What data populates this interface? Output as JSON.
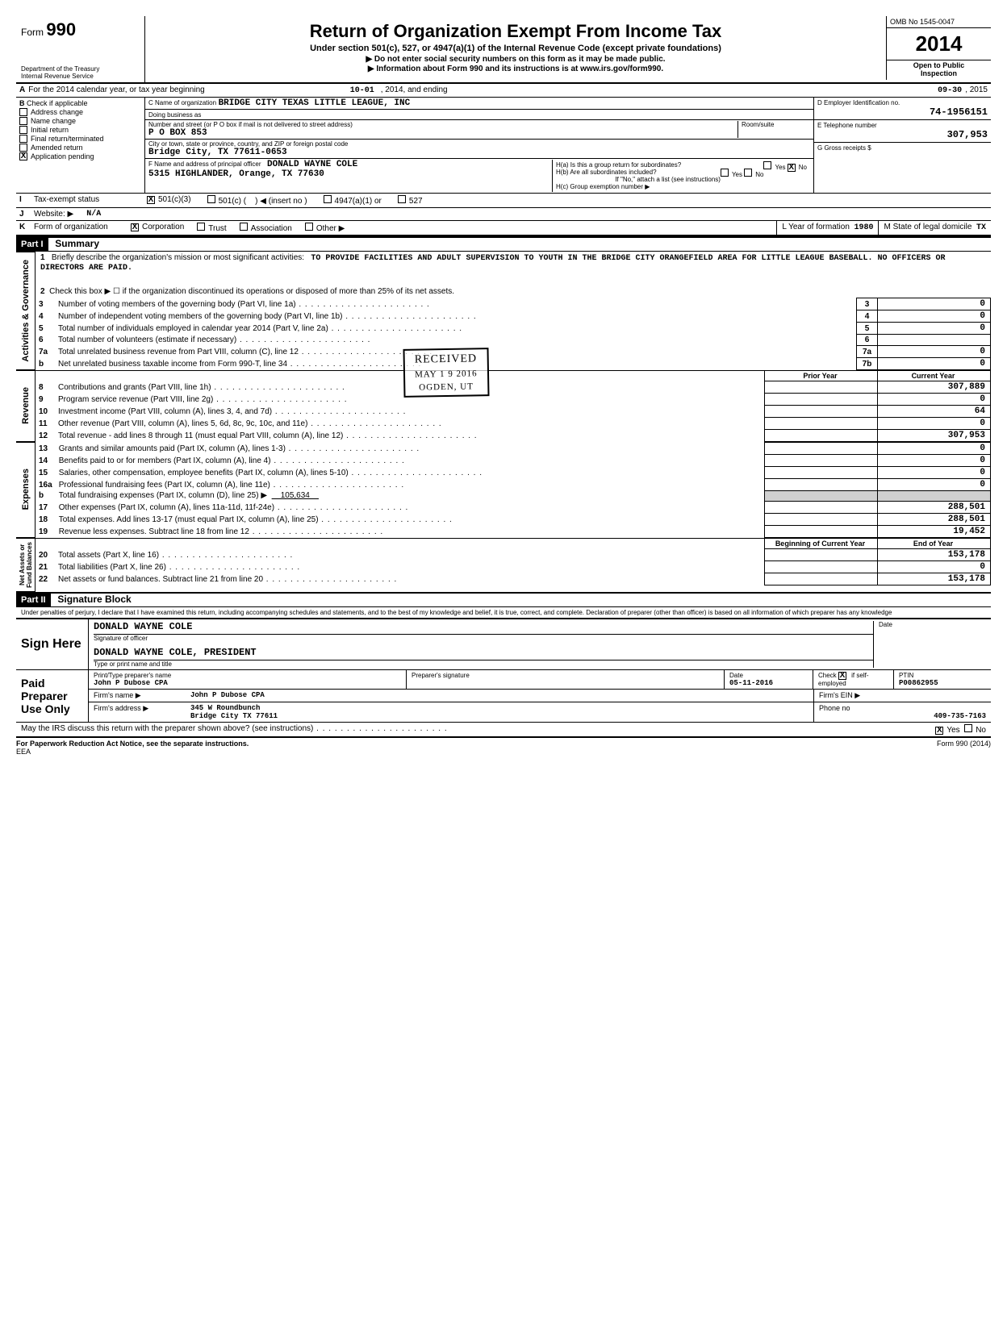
{
  "header": {
    "form_label": "Form",
    "form_number": "990",
    "dept1": "Department of the Treasury",
    "dept2": "Internal Revenue Service",
    "title": "Return of Organization Exempt From Income Tax",
    "subtitle": "Under section 501(c), 527, or 4947(a)(1) of the Internal Revenue Code (except private foundations)",
    "note1": "▶ Do not enter social security numbers on this form as it may be made public.",
    "note2": "▶ Information about Form 990 and its instructions is at www.irs.gov/form990.",
    "omb": "OMB No 1545-0047",
    "year": "2014",
    "open1": "Open to Public",
    "open2": "Inspection"
  },
  "row_a": {
    "prefix": "A",
    "text": "For the 2014 calendar year, or tax year beginning",
    "begin": "10-01",
    "mid": ", 2014, and ending",
    "end": "09-30",
    "end2": ", 2015"
  },
  "section_b": {
    "b_label": "B",
    "b_text": "Check if applicable",
    "checks": [
      {
        "label": "Address change",
        "checked": false
      },
      {
        "label": "Name change",
        "checked": false
      },
      {
        "label": "Initial return",
        "checked": false
      },
      {
        "label": "Final return/terminated",
        "checked": false
      },
      {
        "label": "Amended return",
        "checked": false
      },
      {
        "label": "Application pending",
        "checked": true
      }
    ],
    "c_label": "C  Name of organization",
    "c_value": "BRIDGE CITY TEXAS LITTLE LEAGUE, INC",
    "dba_label": "Doing business as",
    "addr_label": "Number and street (or P O box if mail is not delivered to street address)",
    "addr_value": "P O BOX 853",
    "room_label": "Room/suite",
    "city_label": "City or town, state or province, country, and ZIP or foreign postal code",
    "city_value": "Bridge City, TX 77611-0653",
    "f_label": "F  Name and address of principal officer",
    "f_value1": "DONALD WAYNE COLE",
    "f_value2": "5315 HIGHLANDER, Orange, TX 77630",
    "d_label": "D  Employer Identification no.",
    "d_value": "74-1956151",
    "e_label": "E  Telephone number",
    "e_value": "307,953",
    "g_label": "G  Gross receipts $",
    "ha_label": "H(a)  Is this a group return for subordinates?",
    "ha_yes": "Yes",
    "ha_no": "No",
    "hb_label": "H(b)  Are all subordinates included?",
    "hb_note": "If \"No,\" attach a list (see instructions)",
    "hc_label": "H(c)  Group exemption number  ▶"
  },
  "row_i": {
    "label": "I",
    "text": "Tax-exempt status",
    "opt1": "501(c)(3)",
    "opt2": "501(c) (",
    "opt2b": ")  ◀  (insert no )",
    "opt3": "4947(a)(1) or",
    "opt4": "527"
  },
  "row_j": {
    "label": "J",
    "text": "Website:  ▶",
    "value": "N/A"
  },
  "row_k": {
    "label": "K",
    "text": "Form of organization",
    "opts": [
      "Corporation",
      "Trust",
      "Association",
      "Other ▶"
    ],
    "l_label": "L  Year of formation",
    "l_value": "1980",
    "m_label": "M  State of legal domicile",
    "m_value": "TX"
  },
  "part1": {
    "tag": "Part I",
    "title": "Summary",
    "line1_label": "1",
    "line1_text": "Briefly describe the organization's mission or most significant activities:",
    "mission": "TO PROVIDE FACILITIES AND ADULT SUPERVISION TO YOUTH IN THE BRIDGE CITY ORANGEFIELD AREA FOR LITTLE LEAGUE BASEBALL.  NO OFFICERS OR DIRECTORS ARE PAID.",
    "line2": "Check this box ▶ ☐ if the organization discontinued its operations or disposed of more than 25% of its net assets.",
    "rows_gov": [
      {
        "n": "3",
        "t": "Number of voting members of the governing body (Part VI, line 1a)",
        "box": "3",
        "v": "0"
      },
      {
        "n": "4",
        "t": "Number of independent voting members of the governing body (Part VI, line 1b)",
        "box": "4",
        "v": "0"
      },
      {
        "n": "5",
        "t": "Total number of individuals employed in calendar year 2014 (Part V, line 2a)",
        "box": "5",
        "v": "0"
      },
      {
        "n": "6",
        "t": "Total number of volunteers (estimate if necessary)",
        "box": "6",
        "v": ""
      },
      {
        "n": "7a",
        "t": "Total unrelated business revenue from Part VIII, column (C), line 12",
        "box": "7a",
        "v": "0"
      },
      {
        "n": "b",
        "t": "Net unrelated business taxable income from Form 990-T, line 34",
        "box": "7b",
        "v": "0"
      }
    ],
    "col_hdr_prior": "Prior Year",
    "col_hdr_curr": "Current Year",
    "rows_rev": [
      {
        "n": "8",
        "t": "Contributions and grants (Part VIII, line 1h)",
        "p": "",
        "c": "307,889"
      },
      {
        "n": "9",
        "t": "Program service revenue (Part VIII, line 2g)",
        "p": "",
        "c": "0"
      },
      {
        "n": "10",
        "t": "Investment income (Part VIII, column (A), lines 3, 4, and 7d)",
        "p": "",
        "c": "64"
      },
      {
        "n": "11",
        "t": "Other revenue (Part VIII, column (A), lines 5, 6d, 8c, 9c, 10c, and 11e)",
        "p": "",
        "c": "0"
      },
      {
        "n": "12",
        "t": "Total revenue - add lines 8 through 11 (must equal Part VIII, column (A), line 12)",
        "p": "",
        "c": "307,953"
      }
    ],
    "rows_exp": [
      {
        "n": "13",
        "t": "Grants and similar amounts paid (Part IX, column (A), lines 1-3)",
        "p": "",
        "c": "0"
      },
      {
        "n": "14",
        "t": "Benefits paid to or for members (Part IX, column (A), line 4)",
        "p": "",
        "c": "0"
      },
      {
        "n": "15",
        "t": "Salaries, other compensation, employee benefits (Part IX, column (A), lines 5-10)",
        "p": "",
        "c": "0"
      },
      {
        "n": "16a",
        "t": "Professional fundraising fees (Part IX, column (A), line 11e)",
        "p": "",
        "c": "0"
      },
      {
        "n": "b",
        "t": "Total fundraising expenses (Part IX, column (D), line 25)  ▶",
        "inline": "105,634",
        "p": "shade",
        "c": "shade"
      },
      {
        "n": "17",
        "t": "Other expenses (Part IX, column (A), lines 11a-11d, 11f-24e)",
        "p": "",
        "c": "288,501"
      },
      {
        "n": "18",
        "t": "Total expenses.  Add lines 13-17 (must equal Part IX, column (A), line 25)",
        "p": "",
        "c": "288,501"
      },
      {
        "n": "19",
        "t": "Revenue less expenses.  Subtract line 18 from line 12",
        "p": "",
        "c": "19,452"
      }
    ],
    "col_hdr_begin": "Beginning of Current Year",
    "col_hdr_end": "End of Year",
    "rows_net": [
      {
        "n": "20",
        "t": "Total assets (Part X, line 16)",
        "p": "",
        "c": "153,178"
      },
      {
        "n": "21",
        "t": "Total liabilities (Part X, line 26)",
        "p": "",
        "c": "0"
      },
      {
        "n": "22",
        "t": "Net assets or fund balances.  Subtract line 21 from line 20",
        "p": "",
        "c": "153,178"
      }
    ],
    "side_labels": {
      "gov": "Activities & Governance",
      "rev": "Revenue",
      "exp": "Expenses",
      "net": "Net Assets or\nFund Balances"
    }
  },
  "part2": {
    "tag": "Part II",
    "title": "Signature Block",
    "perjury": "Under penalties of perjury, I declare that I have examined this return, including accompanying schedules and statements, and to the best of my knowledge and belief, it is true, correct, and complete. Declaration of preparer (other than officer) is based on all information of which preparer has any knowledge",
    "sign_here": "Sign Here",
    "officer_name": "DONALD WAYNE COLE",
    "officer_sig_label": "Signature of officer",
    "officer_title": "DONALD WAYNE COLE, PRESIDENT",
    "officer_title_label": "Type or print name and title",
    "date_label": "Date",
    "paid": "Paid Preparer Use Only",
    "prep_name_label": "Print/Type preparer's name",
    "prep_name": "John P Dubose CPA",
    "prep_sig_label": "Preparer's signature",
    "prep_date_label": "Date",
    "prep_date": "05-11-2016",
    "check_label": "Check",
    "self_emp": "if self-employed",
    "ptin_label": "PTIN",
    "ptin": "P00862955",
    "firm_name_label": "Firm's name  ▶",
    "firm_name": "John P Dubose CPA",
    "firm_ein_label": "Firm's EIN  ▶",
    "firm_addr_label": "Firm's address ▶",
    "firm_addr1": "345 W Roundbunch",
    "firm_addr2": "Bridge City TX 77611",
    "phone_label": "Phone no",
    "phone": "409-735-7163",
    "discuss": "May the IRS discuss this return with the preparer shown above? (see instructions)",
    "yes": "Yes",
    "no": "No"
  },
  "footer": {
    "pra": "For Paperwork Reduction Act Notice, see the separate instructions.",
    "eea": "EEA",
    "form": "Form 990 (2014)"
  },
  "stamps": {
    "received": "RECEIVED",
    "date": "MAY 1 9 2016",
    "ogden": "OGDEN, UT"
  },
  "colors": {
    "text": "#000000",
    "bg": "#ffffff",
    "shade": "#d0d0d0"
  }
}
